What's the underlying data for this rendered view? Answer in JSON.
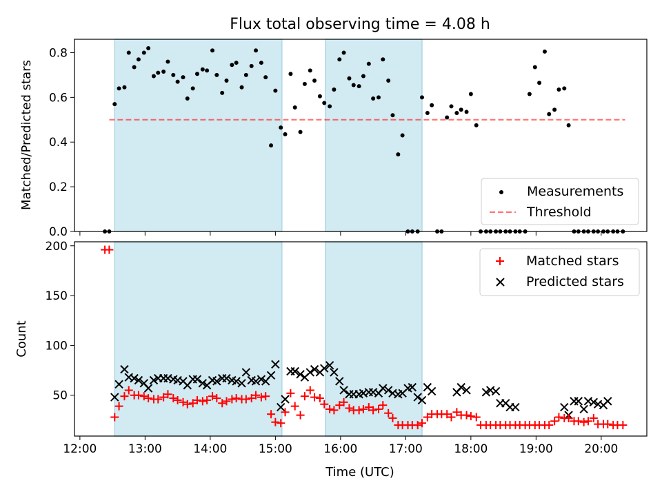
{
  "title": "Flux total observing time = 4.08 h",
  "colors": {
    "shade": "#add8e6",
    "threshold": "#ff0000",
    "matched": "#ff0000",
    "predicted": "#000000",
    "measurements": "#000000"
  },
  "chart_data": [
    {
      "type": "scatter",
      "panel": "top",
      "title": "Flux total observing time = 4.08 h",
      "xlabel": "",
      "ylabel": "Matched/Predicted stars",
      "xlim": [
        "11:55",
        "20:42"
      ],
      "ylim": [
        0,
        0.86
      ],
      "yticks": [
        0.0,
        0.2,
        0.4,
        0.6,
        0.8
      ],
      "ytick_labels": [
        "0.0",
        "0.2",
        "0.4",
        "0.6",
        "0.8"
      ],
      "shaded_intervals": [
        [
          "12:32",
          "15:06"
        ],
        [
          "15:46",
          "17:15"
        ]
      ],
      "threshold": {
        "name": "Threshold",
        "value": 0.5,
        "x_range": [
          "12:27",
          "20:22"
        ],
        "style": "dashed"
      },
      "legend": {
        "position": "lower-right",
        "entries": [
          "Measurements",
          "Threshold"
        ]
      },
      "series": [
        {
          "name": "Measurements",
          "marker": "dot",
          "x": [
            "12:23",
            "12:27",
            "12:32",
            "12:36",
            "12:41",
            "12:45",
            "12:50",
            "12:54",
            "12:59",
            "13:03",
            "13:08",
            "13:12",
            "13:17",
            "13:21",
            "13:26",
            "13:30",
            "13:35",
            "13:39",
            "13:44",
            "13:48",
            "13:53",
            "13:57",
            "14:02",
            "14:06",
            "14:11",
            "14:15",
            "14:20",
            "14:24",
            "14:29",
            "14:33",
            "14:38",
            "14:42",
            "14:47",
            "14:51",
            "14:56",
            "15:00",
            "15:05",
            "15:09",
            "15:14",
            "15:18",
            "15:23",
            "15:27",
            "15:32",
            "15:36",
            "15:41",
            "15:45",
            "15:50",
            "15:54",
            "15:59",
            "16:03",
            "16:08",
            "16:12",
            "16:17",
            "16:21",
            "16:26",
            "16:30",
            "16:35",
            "16:39",
            "16:44",
            "16:48",
            "16:53",
            "16:57",
            "17:02",
            "17:06",
            "17:11",
            "17:15",
            "17:20",
            "17:24",
            "17:29",
            "17:33",
            "17:38",
            "17:42",
            "17:47",
            "17:51",
            "17:56",
            "18:00",
            "18:05",
            "18:09",
            "18:14",
            "18:18",
            "18:23",
            "18:27",
            "18:32",
            "18:36",
            "18:41",
            "18:45",
            "18:50",
            "18:54",
            "18:59",
            "19:03",
            "19:08",
            "19:12",
            "19:17",
            "19:21",
            "19:26",
            "19:30",
            "19:35",
            "19:39",
            "19:44",
            "19:48",
            "19:53",
            "19:57",
            "20:02",
            "20:06",
            "20:11",
            "20:15",
            "20:20"
          ],
          "y": [
            0.0,
            0.0,
            0.57,
            0.64,
            0.645,
            0.8,
            0.735,
            0.77,
            0.8,
            0.82,
            0.695,
            0.71,
            0.715,
            0.76,
            0.7,
            0.67,
            0.69,
            0.595,
            0.64,
            0.705,
            0.725,
            0.72,
            0.81,
            0.7,
            0.62,
            0.675,
            0.745,
            0.755,
            0.645,
            0.7,
            0.74,
            0.81,
            0.755,
            0.69,
            0.385,
            0.63,
            0.465,
            0.435,
            0.705,
            0.555,
            0.445,
            0.66,
            0.72,
            0.675,
            0.605,
            0.575,
            0.56,
            0.635,
            0.77,
            0.8,
            0.685,
            0.655,
            0.65,
            0.695,
            0.75,
            0.595,
            0.6,
            0.77,
            0.675,
            0.52,
            0.345,
            0.43,
            0.0,
            0.0,
            0.0,
            0.6,
            0.53,
            0.565,
            0.0,
            0.0,
            0.51,
            0.56,
            0.53,
            0.545,
            0.535,
            0.615,
            0.475,
            0.0,
            0.0,
            0.0,
            0.0,
            0.0,
            0.0,
            0.0,
            0.0,
            0.0,
            0.0,
            0.615,
            0.735,
            0.665,
            0.805,
            0.525,
            0.545,
            0.635,
            0.64,
            0.475,
            0.0,
            0.0,
            0.0,
            0.0,
            0.0,
            0.0,
            0.0,
            0.0,
            0.0,
            0.0,
            0.0
          ]
        }
      ]
    },
    {
      "type": "scatter",
      "panel": "bottom",
      "title": "",
      "xlabel": "Time (UTC)",
      "ylabel": "Count",
      "xlim": [
        "11:55",
        "20:42"
      ],
      "ylim": [
        9,
        204
      ],
      "yticks": [
        50,
        100,
        150,
        200
      ],
      "ytick_labels": [
        "50",
        "100",
        "150",
        "200"
      ],
      "xtick_labels": [
        "12:00",
        "13:00",
        "14:00",
        "15:00",
        "16:00",
        "17:00",
        "18:00",
        "19:00",
        "20:00"
      ],
      "shaded_intervals": [
        [
          "12:32",
          "15:06"
        ],
        [
          "15:46",
          "17:15"
        ]
      ],
      "legend": {
        "position": "top-right",
        "entries": [
          "Matched stars",
          "Predicted stars"
        ]
      },
      "series": [
        {
          "name": "Matched stars",
          "marker": "plus",
          "x": [
            "12:23",
            "12:27",
            "12:32",
            "12:36",
            "12:41",
            "12:45",
            "12:50",
            "12:54",
            "12:59",
            "13:03",
            "13:08",
            "13:12",
            "13:17",
            "13:21",
            "13:26",
            "13:30",
            "13:35",
            "13:39",
            "13:44",
            "13:48",
            "13:53",
            "13:57",
            "14:02",
            "14:06",
            "14:11",
            "14:15",
            "14:20",
            "14:24",
            "14:29",
            "14:33",
            "14:38",
            "14:42",
            "14:47",
            "14:51",
            "14:56",
            "15:00",
            "15:05",
            "15:09",
            "15:14",
            "15:18",
            "15:23",
            "15:27",
            "15:32",
            "15:36",
            "15:41",
            "15:45",
            "15:50",
            "15:54",
            "15:59",
            "16:03",
            "16:08",
            "16:12",
            "16:17",
            "16:21",
            "16:26",
            "16:30",
            "16:35",
            "16:39",
            "16:44",
            "16:48",
            "16:53",
            "16:57",
            "17:02",
            "17:06",
            "17:11",
            "17:15",
            "17:20",
            "17:24",
            "17:29",
            "17:33",
            "17:38",
            "17:42",
            "17:47",
            "17:51",
            "17:56",
            "18:00",
            "18:05",
            "18:09",
            "18:14",
            "18:18",
            "18:23",
            "18:27",
            "18:32",
            "18:36",
            "18:41",
            "18:45",
            "18:50",
            "18:54",
            "18:59",
            "19:03",
            "19:08",
            "19:12",
            "19:17",
            "19:21",
            "19:26",
            "19:30",
            "19:35",
            "19:39",
            "19:44",
            "19:48",
            "19:53",
            "19:57",
            "20:02",
            "20:06",
            "20:11",
            "20:15",
            "20:20"
          ],
          "y": [
            196,
            196,
            28,
            39,
            49,
            55,
            50,
            50,
            49,
            47,
            46,
            46,
            48,
            51,
            47,
            45,
            43,
            41,
            42,
            45,
            44,
            45,
            49,
            47,
            42,
            44,
            46,
            47,
            46,
            46,
            47,
            50,
            48,
            49,
            31,
            23,
            22,
            33,
            52,
            39,
            30,
            49,
            55,
            48,
            47,
            41,
            36,
            35,
            40,
            43,
            37,
            35,
            35,
            36,
            38,
            35,
            36,
            40,
            32,
            27,
            20,
            20,
            20,
            20,
            20,
            22,
            28,
            31,
            31,
            31,
            31,
            28,
            33,
            30,
            30,
            29,
            28,
            20,
            20,
            20,
            20,
            20,
            20,
            20,
            20,
            20,
            20,
            20,
            20,
            20,
            20,
            20,
            24,
            28,
            27,
            27,
            24,
            24,
            23,
            24,
            27,
            21,
            21,
            21,
            20,
            20,
            20
          ]
        },
        {
          "name": "Predicted stars",
          "marker": "x",
          "x": [
            "12:32",
            "12:36",
            "12:41",
            "12:45",
            "12:50",
            "12:54",
            "12:59",
            "13:03",
            "13:08",
            "13:12",
            "13:17",
            "13:21",
            "13:26",
            "13:30",
            "13:35",
            "13:39",
            "13:44",
            "13:48",
            "13:53",
            "13:57",
            "14:02",
            "14:06",
            "14:11",
            "14:15",
            "14:20",
            "14:24",
            "14:29",
            "14:33",
            "14:38",
            "14:42",
            "14:47",
            "14:51",
            "14:56",
            "15:00",
            "15:05",
            "15:09",
            "15:14",
            "15:18",
            "15:23",
            "15:27",
            "15:32",
            "15:36",
            "15:41",
            "15:45",
            "15:50",
            "15:54",
            "15:59",
            "16:03",
            "16:08",
            "16:12",
            "16:17",
            "16:21",
            "16:26",
            "16:30",
            "16:35",
            "16:39",
            "16:44",
            "16:48",
            "16:53",
            "16:57",
            "17:02",
            "17:06",
            "17:11",
            "17:15",
            "17:20",
            "17:24",
            "17:47",
            "17:51",
            "17:56",
            "18:14",
            "18:18",
            "18:23",
            "18:27",
            "18:32",
            "18:36",
            "18:41",
            "19:26",
            "19:30",
            "19:35",
            "19:39",
            "19:44",
            "19:48",
            "19:53",
            "19:57",
            "20:02",
            "20:06"
          ],
          "y": [
            48,
            61,
            76,
            68,
            67,
            65,
            62,
            57,
            65,
            67,
            67,
            67,
            66,
            65,
            64,
            60,
            66,
            66,
            62,
            60,
            65,
            64,
            67,
            67,
            65,
            64,
            62,
            73,
            65,
            64,
            66,
            64,
            70,
            81,
            38,
            46,
            74,
            74,
            71,
            68,
            73,
            76,
            73,
            77,
            80,
            73,
            64,
            55,
            51,
            51,
            51,
            52,
            53,
            53,
            52,
            57,
            55,
            52,
            51,
            52,
            57,
            58,
            48,
            45,
            58,
            54,
            53,
            58,
            55,
            53,
            55,
            54,
            42,
            42,
            38,
            38,
            38,
            30,
            44,
            44,
            36,
            44,
            43,
            41,
            40,
            44
          ]
        }
      ]
    }
  ]
}
